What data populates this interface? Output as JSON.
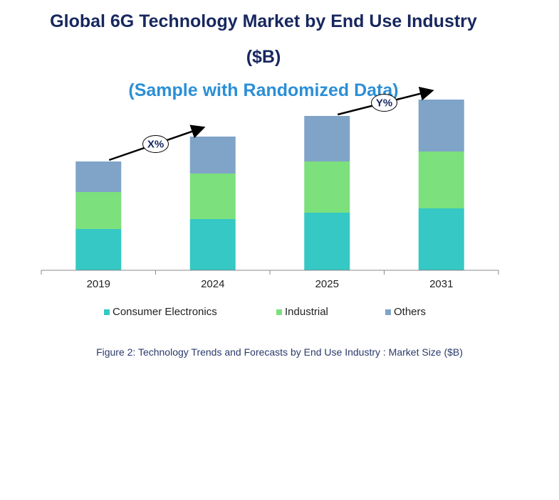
{
  "title_line1": "Global 6G Technology Market by End Use Industry",
  "title_line2": "($B)",
  "subtitle": "(Sample with Randomized Data)",
  "caption": "Figure 2: Technology  Trends  and Forecasts by End Use Industry   : Market Size ($B)",
  "colors": {
    "consumer": "#35c8c4",
    "industrial": "#7ce07c",
    "others": "#7fa4c8",
    "title": "#17275f",
    "subtitle": "#2b8fd6"
  },
  "chart_data": {
    "type": "bar",
    "stacked": true,
    "categories": [
      "2019",
      "2024",
      "2025",
      "2031"
    ],
    "series": [
      {
        "name": "Consumer Electronics",
        "values": [
          58,
          72,
          81,
          87
        ]
      },
      {
        "name": "Industrial",
        "values": [
          52,
          64,
          72,
          80
        ]
      },
      {
        "name": "Others",
        "values": [
          43,
          52,
          64,
          73
        ]
      }
    ],
    "ylim": [
      0,
      240
    ],
    "grid": false,
    "legend_position": "bottom",
    "annotations": [
      {
        "label": "X%",
        "from": "2019",
        "to": "2024"
      },
      {
        "label": "Y%",
        "from": "2025",
        "to": "2031"
      }
    ]
  }
}
